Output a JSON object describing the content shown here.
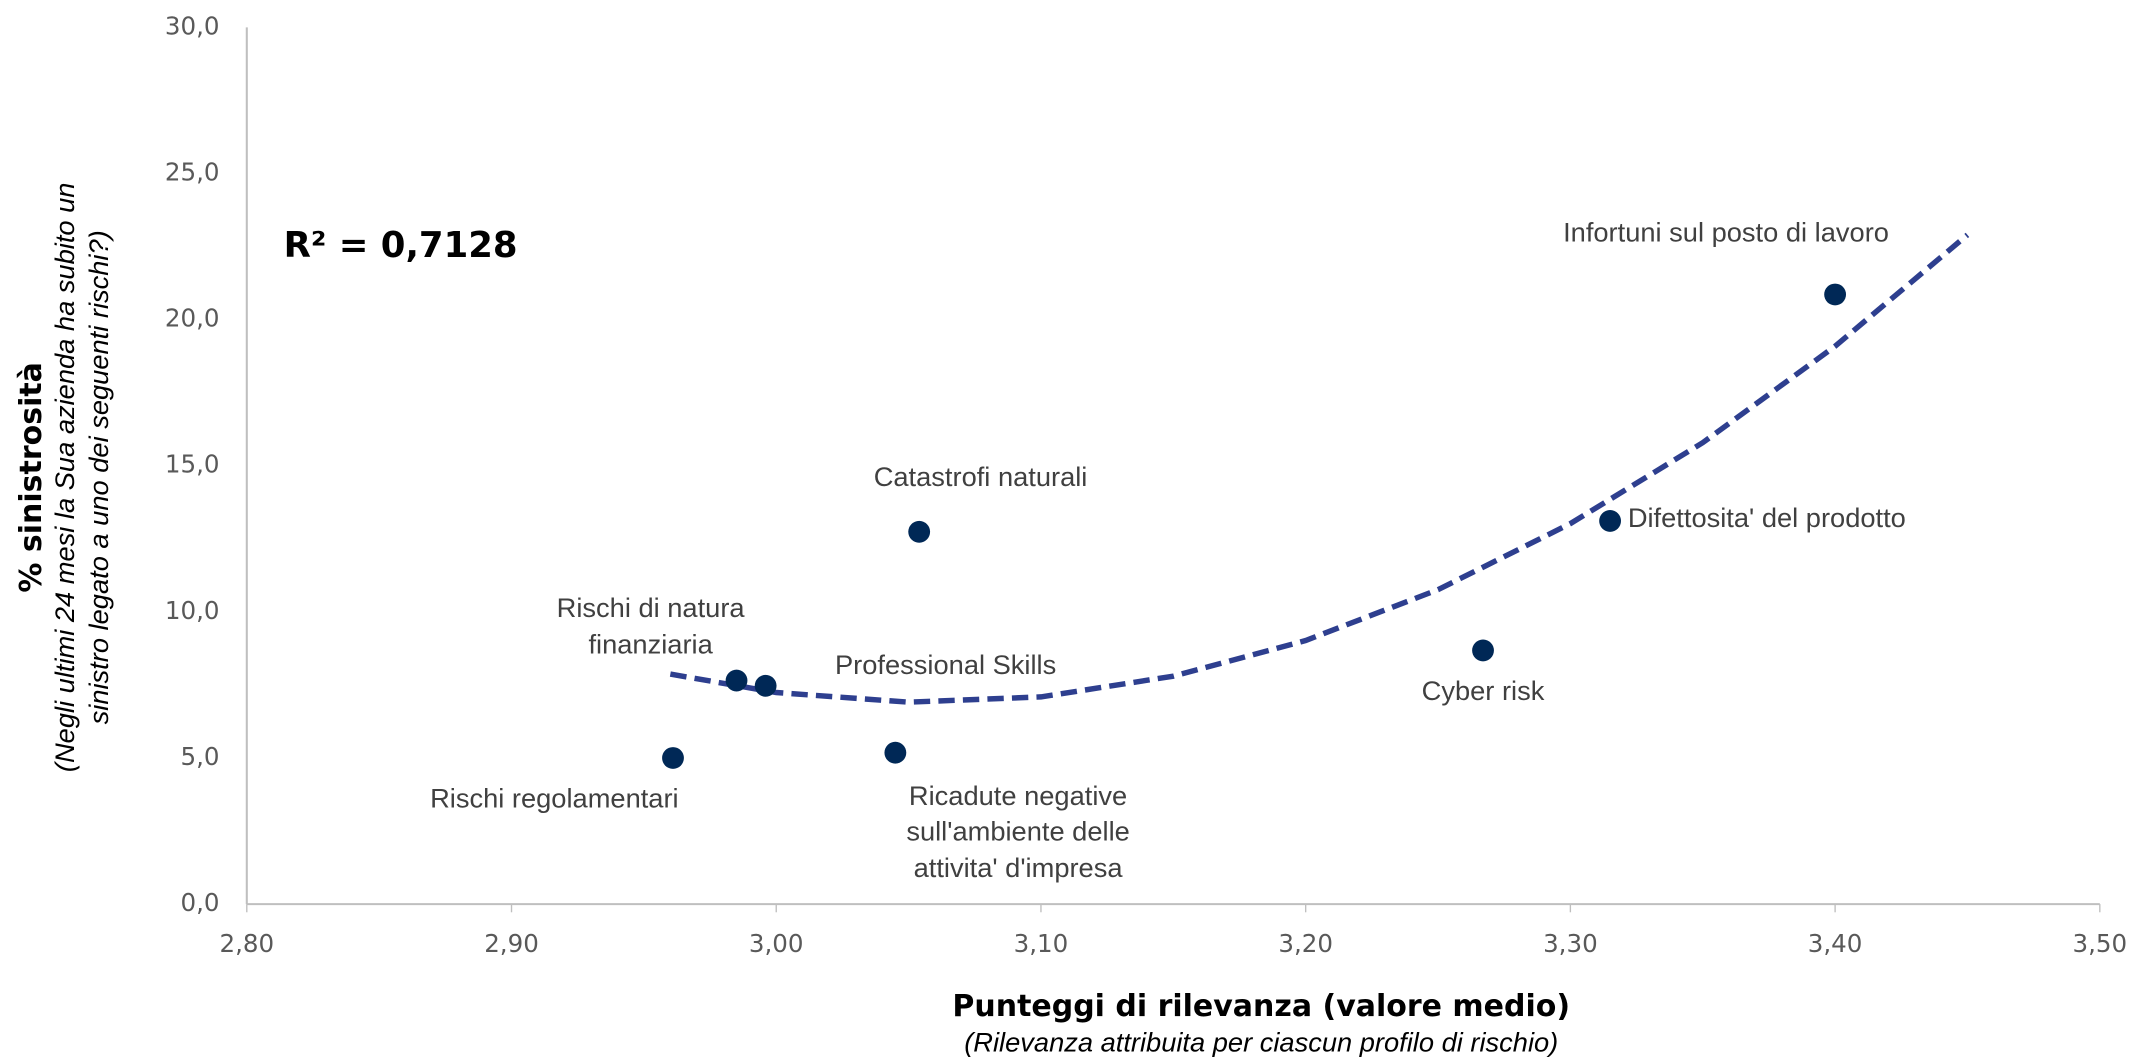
{
  "chart_data": {
    "type": "scatter",
    "annotation": "R² = 0,7128",
    "x_title": "Punteggi di rilevanza (valore medio)",
    "x_subtitle": "(Rilevanza attribuita per ciascun profilo di rischio)",
    "y_title": "% sinistrosità",
    "y_subtitle": [
      "(Negli ultimi 24 mesi la Sua azienda ha subito un",
      "sinistro legato a uno dei seguenti rischi?)"
    ],
    "labels": [
      [
        "Rischi regolamentari"
      ],
      [
        "Rischi di natura",
        "finanziaria"
      ],
      [
        "Professional Skills"
      ],
      [
        "Ricadute negative",
        "sull'ambiente delle",
        "attivita' d'impresa"
      ],
      [
        "Catastrofi naturali"
      ],
      [
        "Cyber risk"
      ],
      [
        "Difettosita' del prodotto"
      ],
      [
        "Infortuni sul posto di lavoro"
      ]
    ],
    "x": [
      2.961,
      2.985,
      2.996,
      3.045,
      3.054,
      3.267,
      3.315,
      3.4
    ],
    "values": [
      5.0,
      7.65,
      7.47,
      5.18,
      12.74,
      8.68,
      13.11,
      20.86
    ],
    "color": "#002856",
    "trendline": {
      "color": "#2e3f8f",
      "x": [
        2.96,
        3.0,
        3.05,
        3.1,
        3.15,
        3.2,
        3.25,
        3.3,
        3.35,
        3.4,
        3.45
      ],
      "values": [
        7.87,
        7.24,
        6.91,
        7.09,
        7.8,
        9.02,
        10.76,
        13.02,
        15.79,
        19.09,
        22.9
      ]
    },
    "xlim": [
      2.8,
      3.5
    ],
    "xticks": [
      {
        "value": 2.8,
        "label": "2,80"
      },
      {
        "value": 2.9,
        "label": "2,90"
      },
      {
        "value": 3.0,
        "label": "3,00"
      },
      {
        "value": 3.1,
        "label": "3,10"
      },
      {
        "value": 3.2,
        "label": "3,20"
      },
      {
        "value": 3.3,
        "label": "3,30"
      },
      {
        "value": 3.4,
        "label": "3,40"
      },
      {
        "value": 3.5,
        "label": "3,50"
      }
    ],
    "ylim": [
      0,
      30
    ],
    "yticks": [
      {
        "value": 0,
        "label": "0,0"
      },
      {
        "value": 5,
        "label": "5,0"
      },
      {
        "value": 10,
        "label": "10,0"
      },
      {
        "value": 15,
        "label": "15,0"
      },
      {
        "value": 20,
        "label": "20,0"
      },
      {
        "value": 25,
        "label": "25,0"
      },
      {
        "value": 30,
        "label": "30,0"
      }
    ],
    "grid": false
  }
}
